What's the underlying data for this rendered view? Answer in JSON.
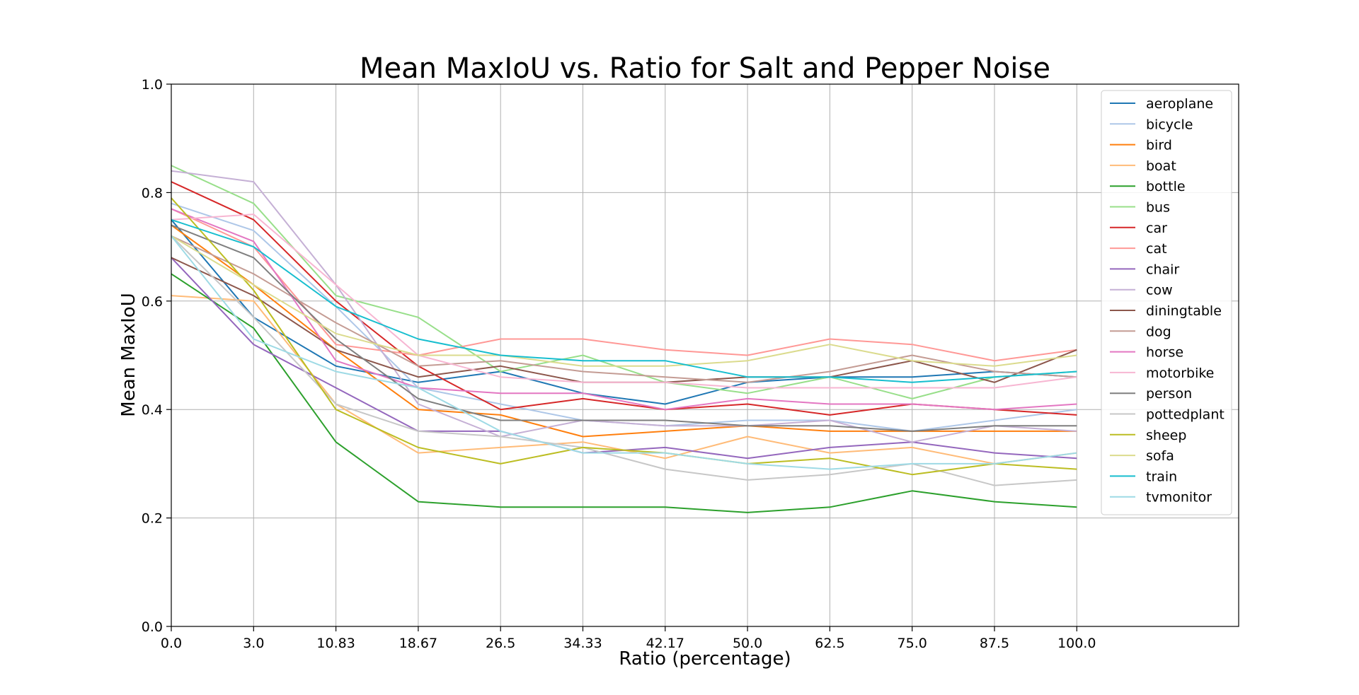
{
  "chart_data": {
    "type": "line",
    "title": "Mean MaxIoU vs. Ratio for Salt and Pepper Noise",
    "xlabel": "Ratio (percentage)",
    "ylabel": "Mean MaxIoU",
    "x": [
      "0.0",
      "3.0",
      "10.83",
      "18.67",
      "26.5",
      "34.33",
      "42.17",
      "50.0",
      "62.5",
      "75.0",
      "87.5",
      "100.0"
    ],
    "yticks": [
      "0.0",
      "0.2",
      "0.4",
      "0.6",
      "0.8",
      "1.0"
    ],
    "ylim": [
      0,
      1
    ],
    "grid": true,
    "legend_position": "top-right",
    "series": [
      {
        "name": "aeroplane",
        "color": "#1f77b4",
        "values": [
          0.75,
          0.57,
          0.48,
          0.45,
          0.47,
          0.43,
          0.41,
          0.45,
          0.46,
          0.46,
          0.47,
          0.46
        ]
      },
      {
        "name": "bicycle",
        "color": "#aec7e8",
        "values": [
          0.78,
          0.73,
          0.59,
          0.44,
          0.41,
          0.38,
          0.37,
          0.38,
          0.38,
          0.36,
          0.38,
          0.4
        ]
      },
      {
        "name": "bird",
        "color": "#ff7f0e",
        "values": [
          0.74,
          0.63,
          0.51,
          0.4,
          0.39,
          0.35,
          0.36,
          0.37,
          0.36,
          0.36,
          0.36,
          0.36
        ]
      },
      {
        "name": "boat",
        "color": "#ffbb78",
        "values": [
          0.61,
          0.6,
          0.41,
          0.32,
          0.33,
          0.34,
          0.31,
          0.35,
          0.32,
          0.33,
          0.3,
          0.32
        ]
      },
      {
        "name": "bottle",
        "color": "#2ca02c",
        "values": [
          0.65,
          0.55,
          0.34,
          0.23,
          0.22,
          0.22,
          0.22,
          0.21,
          0.22,
          0.25,
          0.23,
          0.22
        ]
      },
      {
        "name": "bus",
        "color": "#98df8a",
        "values": [
          0.85,
          0.78,
          0.61,
          0.57,
          0.47,
          0.5,
          0.45,
          0.43,
          0.46,
          0.42,
          0.46,
          0.47
        ]
      },
      {
        "name": "car",
        "color": "#d62728",
        "values": [
          0.82,
          0.75,
          0.6,
          0.48,
          0.4,
          0.42,
          0.4,
          0.41,
          0.39,
          0.41,
          0.4,
          0.39
        ]
      },
      {
        "name": "cat",
        "color": "#ff9896",
        "values": [
          0.77,
          0.7,
          0.52,
          0.5,
          0.53,
          0.53,
          0.51,
          0.5,
          0.53,
          0.52,
          0.49,
          0.51
        ]
      },
      {
        "name": "chair",
        "color": "#9467bd",
        "values": [
          0.68,
          0.52,
          0.44,
          0.36,
          0.36,
          0.32,
          0.33,
          0.31,
          0.33,
          0.34,
          0.32,
          0.31
        ]
      },
      {
        "name": "cow",
        "color": "#c5b0d5",
        "values": [
          0.84,
          0.82,
          0.63,
          0.41,
          0.35,
          0.38,
          0.37,
          0.37,
          0.38,
          0.34,
          0.37,
          0.36
        ]
      },
      {
        "name": "diningtable",
        "color": "#8c564b",
        "values": [
          0.68,
          0.61,
          0.51,
          0.46,
          0.48,
          0.45,
          0.45,
          0.46,
          0.46,
          0.49,
          0.45,
          0.51
        ]
      },
      {
        "name": "dog",
        "color": "#c49c94",
        "values": [
          0.72,
          0.65,
          0.56,
          0.48,
          0.49,
          0.47,
          0.46,
          0.45,
          0.47,
          0.5,
          0.47,
          0.46
        ]
      },
      {
        "name": "horse",
        "color": "#e377c2",
        "values": [
          0.77,
          0.71,
          0.49,
          0.44,
          0.43,
          0.43,
          0.4,
          0.42,
          0.41,
          0.41,
          0.4,
          0.41
        ]
      },
      {
        "name": "motorbike",
        "color": "#f7b6d2",
        "values": [
          0.75,
          0.76,
          0.63,
          0.5,
          0.46,
          0.45,
          0.45,
          0.44,
          0.44,
          0.44,
          0.44,
          0.46
        ]
      },
      {
        "name": "person",
        "color": "#7f7f7f",
        "values": [
          0.74,
          0.68,
          0.53,
          0.42,
          0.38,
          0.38,
          0.38,
          0.37,
          0.37,
          0.36,
          0.37,
          0.37
        ]
      },
      {
        "name": "pottedplant",
        "color": "#c7c7c7",
        "values": [
          0.72,
          0.57,
          0.41,
          0.36,
          0.35,
          0.33,
          0.29,
          0.27,
          0.28,
          0.3,
          0.26,
          0.27
        ]
      },
      {
        "name": "sheep",
        "color": "#bcbd22",
        "values": [
          0.79,
          0.62,
          0.4,
          0.33,
          0.3,
          0.33,
          0.32,
          0.3,
          0.31,
          0.28,
          0.3,
          0.29
        ]
      },
      {
        "name": "sofa",
        "color": "#dbdb8d",
        "values": [
          0.72,
          0.63,
          0.54,
          0.5,
          0.5,
          0.48,
          0.48,
          0.49,
          0.52,
          0.49,
          0.48,
          0.5
        ]
      },
      {
        "name": "train",
        "color": "#17becf",
        "values": [
          0.75,
          0.7,
          0.59,
          0.53,
          0.5,
          0.49,
          0.49,
          0.46,
          0.46,
          0.45,
          0.46,
          0.47
        ]
      },
      {
        "name": "tvmonitor",
        "color": "#9edae5",
        "values": [
          0.72,
          0.53,
          0.47,
          0.44,
          0.36,
          0.32,
          0.32,
          0.3,
          0.29,
          0.3,
          0.3,
          0.32
        ]
      }
    ]
  }
}
